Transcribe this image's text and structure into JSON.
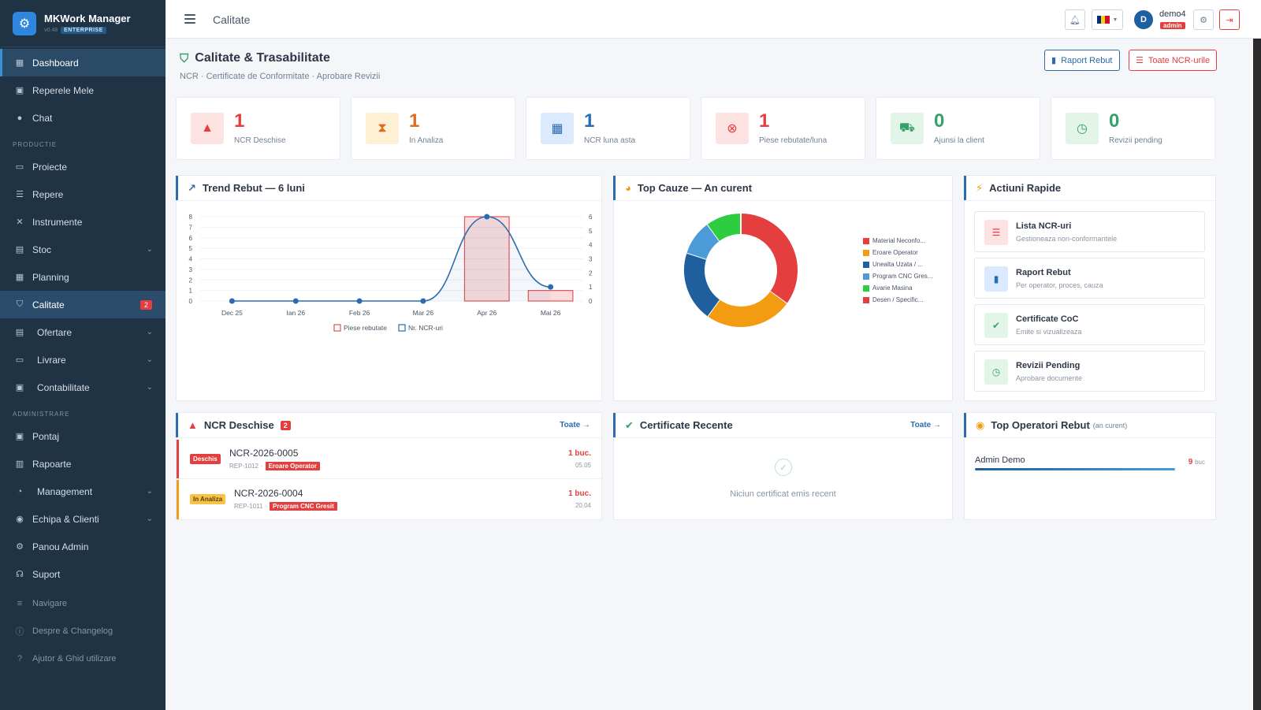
{
  "brand": {
    "title": "MKWork Manager",
    "version": "v0.48",
    "edition": "ENTERPRISE"
  },
  "sidebar": {
    "items": [
      {
        "label": "Dashboard"
      },
      {
        "label": "Reperele Mele"
      },
      {
        "label": "Chat"
      }
    ],
    "section_productie": "PRODUCTIE",
    "productie": [
      {
        "label": "Proiecte"
      },
      {
        "label": "Repere"
      },
      {
        "label": "Instrumente"
      },
      {
        "label": "Stoc"
      },
      {
        "label": "Planning"
      },
      {
        "label": "Calitate",
        "badge": "2"
      },
      {
        "label": "Ofertare"
      },
      {
        "label": "Livrare"
      },
      {
        "label": "Contabilitate"
      }
    ],
    "section_admin": "ADMINISTRARE",
    "admin": [
      {
        "label": "Pontaj"
      },
      {
        "label": "Rapoarte"
      },
      {
        "label": "Management"
      },
      {
        "label": "Echipa & Clienti"
      },
      {
        "label": "Panou Admin"
      },
      {
        "label": "Suport"
      }
    ],
    "footer": [
      {
        "label": "Navigare"
      },
      {
        "label": "Despre & Changelog"
      },
      {
        "label": "Ajutor & Ghid utilizare"
      }
    ]
  },
  "topbar": {
    "title": "Calitate",
    "user": "demo4",
    "role": "admin",
    "avatar": "D"
  },
  "page": {
    "title": "Calitate & Trasabilitate",
    "subtitle": "NCR · Certificate de Conformitate · Aprobare Revizii",
    "btn_report": "Raport Rebut",
    "btn_all_ncr": "Toate NCR-urile"
  },
  "stats": [
    {
      "value": "1",
      "label": "NCR Deschise",
      "color": "#e53e3e",
      "bg": "#fde2e2"
    },
    {
      "value": "1",
      "label": "In Analiza",
      "color": "#dd6b20",
      "bg": "#fdf0d5"
    },
    {
      "value": "1",
      "label": "NCR luna asta",
      "color": "#2b6cb0",
      "bg": "#dbeafe"
    },
    {
      "value": "1",
      "label": "Piese rebutate/luna",
      "color": "#e53e3e",
      "bg": "#fde2e2"
    },
    {
      "value": "0",
      "label": "Ajunsi la client",
      "color": "#38a169",
      "bg": "#e3f5e9"
    },
    {
      "value": "0",
      "label": "Revizii pending",
      "color": "#38a169",
      "bg": "#e3f5e9"
    }
  ],
  "trend": {
    "title": "Trend Rebut — 6 luni",
    "legend_a": "Piese rebutate",
    "legend_b": "Nr. NCR-uri"
  },
  "causes": {
    "title": "Top Cauze — An curent",
    "legend": [
      {
        "label": "Material Neconfo...",
        "color": "#e53e3e"
      },
      {
        "label": "Eroare Operator",
        "color": "#f39c12"
      },
      {
        "label": "Unealta Uzata / ...",
        "color": "#1f5f9e"
      },
      {
        "label": "Program CNC Gres...",
        "color": "#4a9bd8"
      },
      {
        "label": "Avarie Masina",
        "color": "#2ecc40"
      },
      {
        "label": "Desen / Specific...",
        "color": "#e53e3e"
      }
    ]
  },
  "quick": {
    "title": "Actiuni Rapide",
    "items": [
      {
        "title": "Lista NCR-uri",
        "sub": "Gestioneaza non-conformantele"
      },
      {
        "title": "Raport Rebut",
        "sub": "Per operator, proces, cauza"
      },
      {
        "title": "Certificate CoC",
        "sub": "Emite si vizualizeaza"
      },
      {
        "title": "Revizii Pending",
        "sub": "Aprobare documente"
      }
    ]
  },
  "ncr": {
    "title": "NCR Deschise",
    "badge": "2",
    "link": "Toate →",
    "rows": [
      {
        "status": "Deschis",
        "id": "NCR-2026-0005",
        "rep": "REP-1012",
        "cause": "Eroare Operator",
        "qty": "1 buc.",
        "date": "05.05"
      },
      {
        "status": "In Analiza",
        "id": "NCR-2026-0004",
        "rep": "REP-1011",
        "cause": "Program CNC Gresit",
        "qty": "1 buc.",
        "date": "20.04"
      }
    ]
  },
  "certs": {
    "title": "Certificate Recente",
    "link": "Toate →",
    "empty": "Niciun certificat emis recent"
  },
  "operators": {
    "title": "Top Operatori Rebut",
    "subtitle": "(an curent)",
    "rows": [
      {
        "name": "Admin Demo",
        "value": "9",
        "unit": "buc"
      }
    ]
  },
  "chart_data": [
    {
      "type": "bar",
      "title": "Trend Rebut — 6 luni",
      "categories": [
        "Dec 25",
        "Ian 26",
        "Feb 26",
        "Mar 26",
        "Apr 26",
        "Mai 26"
      ],
      "series": [
        {
          "name": "Piese rebutate",
          "values": [
            0,
            0,
            0,
            0,
            8,
            1
          ],
          "axis": "left"
        },
        {
          "name": "Nr. NCR-uri",
          "values": [
            0,
            0,
            0,
            0,
            6,
            1
          ],
          "axis": "right"
        }
      ],
      "ylim_left": [
        0,
        8
      ],
      "ylim_right": [
        0,
        6
      ],
      "yticks_left": [
        "0",
        "1",
        "2",
        "3",
        "4",
        "5",
        "6",
        "7",
        "8"
      ],
      "yticks_right": [
        "0",
        "1",
        "2",
        "3",
        "4",
        "5",
        "6"
      ]
    },
    {
      "type": "pie",
      "title": "Top Cauze — An curent",
      "labels": [
        "Material Neconfo...",
        "Eroare Operator",
        "Unealta Uzata / ...",
        "Program CNC Gres...",
        "Avarie Masina"
      ],
      "values": [
        35,
        25,
        20,
        10,
        10
      ],
      "colors": [
        "#e53e3e",
        "#f39c12",
        "#1f5f9e",
        "#4a9bd8",
        "#2ecc40"
      ]
    }
  ]
}
